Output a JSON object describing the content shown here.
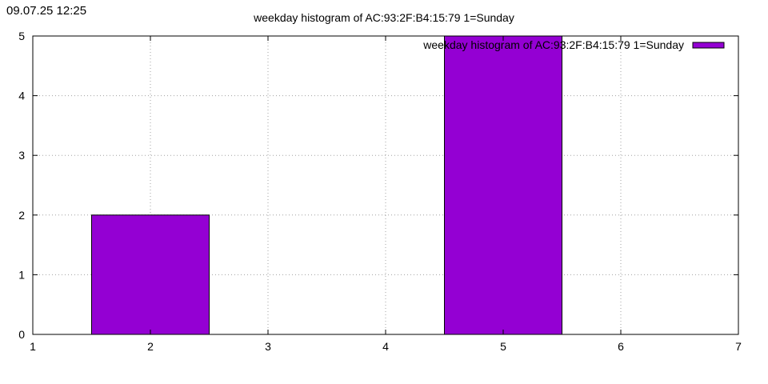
{
  "timestamp": "09.07.25 12:25",
  "chart_data": {
    "type": "bar",
    "title": "weekday histogram of AC:93:2F:B4:15:79 1=Sunday",
    "xlabel": "",
    "ylabel": "",
    "xlim": [
      1,
      7
    ],
    "ylim": [
      0,
      5
    ],
    "xticks": [
      "1",
      "2",
      "3",
      "4",
      "5",
      "6",
      "7"
    ],
    "yticks": [
      "0",
      "1",
      "2",
      "3",
      "4",
      "5"
    ],
    "grid": true,
    "legend_position": "top-right",
    "series": [
      {
        "name": "weekday histogram of AC:93:2F:B4:15:79 1=Sunday",
        "color": "#9400d3",
        "points": [
          {
            "x": 2,
            "y": 2
          },
          {
            "x": 5,
            "y": 5
          }
        ]
      }
    ]
  }
}
